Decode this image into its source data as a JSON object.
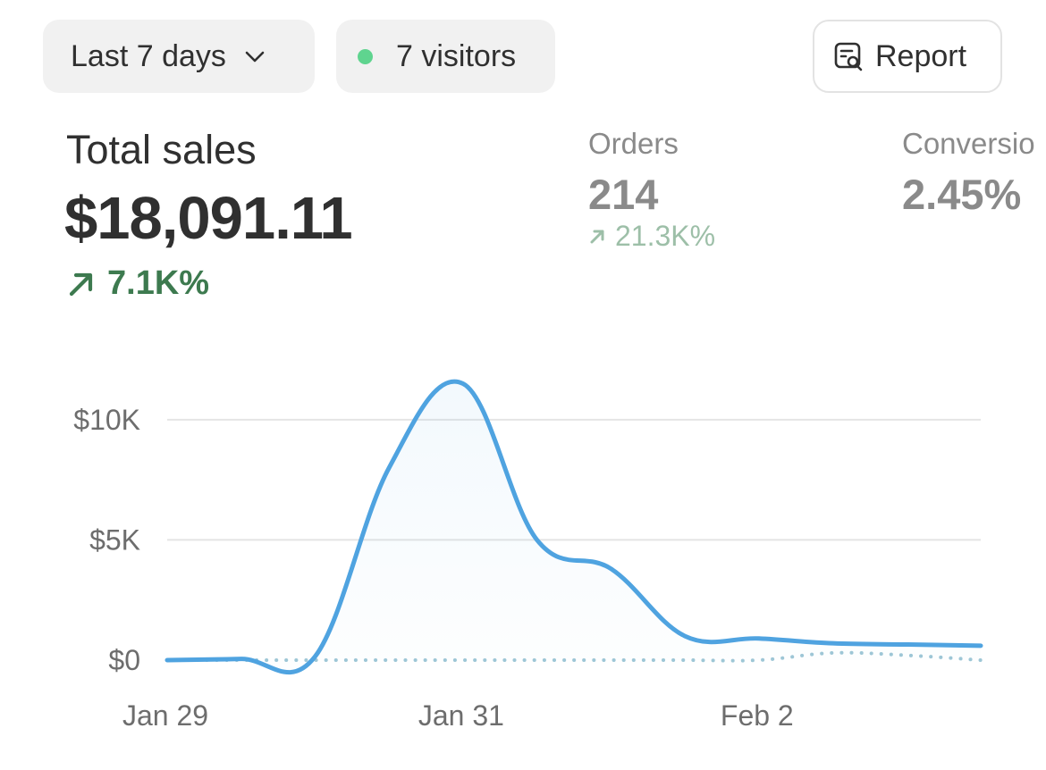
{
  "toolbar": {
    "range_label": "Last 7 days",
    "visitors_label": "7 visitors",
    "report_label": "Report",
    "visitors_dot_color": "#5fd48f"
  },
  "metrics": {
    "total_sales": {
      "label": "Total sales",
      "value": "$18,091.11",
      "change": "7.1K%"
    },
    "orders": {
      "label": "Orders",
      "value": "214",
      "change": "21.3K%"
    },
    "conversion": {
      "label": "Conversio",
      "value": "2.45%"
    }
  },
  "chart_data": {
    "type": "line",
    "x": [
      "Jan 29",
      "Jan 29.5",
      "Jan 30",
      "Jan 30.5",
      "Jan 31",
      "Jan 31.5",
      "Feb 1",
      "Feb 1.5",
      "Feb 2",
      "Feb 2.5",
      "Feb 3",
      "Feb 3.5"
    ],
    "x_numeric": [
      0,
      0.5,
      1,
      1.5,
      2,
      2.5,
      3,
      3.5,
      4,
      4.5,
      5,
      5.5
    ],
    "xticks": [
      {
        "at": 0,
        "label": "Jan 29"
      },
      {
        "at": 2,
        "label": "Jan 31"
      },
      {
        "at": 4,
        "label": "Feb 2"
      }
    ],
    "yticks": [
      {
        "at": 0,
        "label": "$0"
      },
      {
        "at": 5000,
        "label": "$5K"
      },
      {
        "at": 10000,
        "label": "$10K"
      }
    ],
    "ylim": [
      0,
      12000
    ],
    "xlim": [
      0,
      5.5
    ],
    "grid": true,
    "series": [
      {
        "style": "solid",
        "color": "#4fa3e0",
        "values": [
          0,
          50,
          150,
          8000,
          11500,
          5000,
          3800,
          1000,
          900,
          700,
          650,
          600
        ]
      },
      {
        "style": "dotted",
        "color": "#9ec7d6",
        "values": [
          0,
          0,
          0,
          0,
          0,
          0,
          0,
          0,
          0,
          300,
          200,
          0
        ]
      }
    ]
  }
}
